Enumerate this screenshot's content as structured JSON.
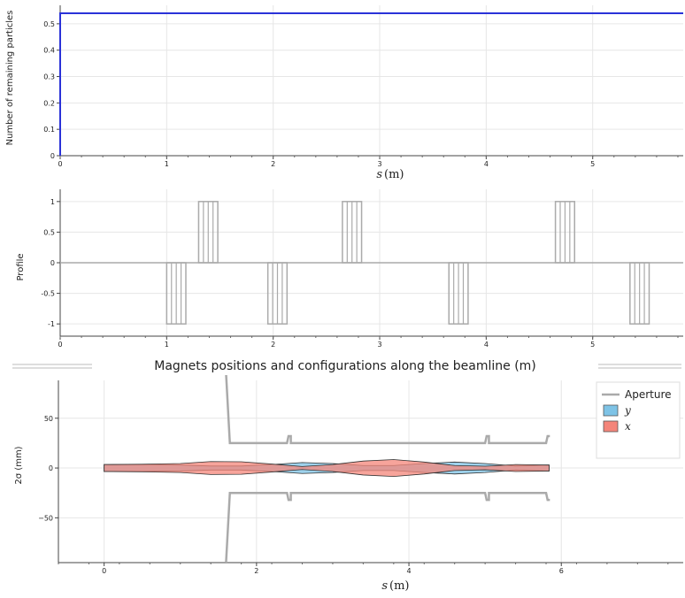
{
  "chart_data": [
    {
      "id": "remaining",
      "type": "line",
      "ylabel": "Number of remaining particles",
      "xlabel": "s",
      "xlabel_unit": "(m)",
      "xlim": [
        0,
        5.85
      ],
      "ylim": [
        0,
        0.57
      ],
      "xticks": [
        0,
        1,
        2,
        3,
        4,
        5
      ],
      "yticks": [
        0,
        0.1,
        0.2,
        0.3,
        0.4,
        0.5
      ],
      "ytick_labels": [
        "0",
        "0.1",
        "0.2",
        "0.3",
        "0.4",
        "0.5"
      ],
      "grid": true,
      "series": [
        {
          "color": "#2a32d8",
          "x": [
            0,
            0,
            5.85
          ],
          "y": [
            0,
            0.54,
            0.54
          ]
        }
      ]
    },
    {
      "id": "magnets",
      "type": "line",
      "ylabel": "Profile",
      "title": "Magnets positions and configurations along the beamline (m)",
      "xlim": [
        0,
        5.85
      ],
      "ylim": [
        -1.2,
        1.2
      ],
      "xticks": [
        0,
        1,
        2,
        3,
        4,
        5
      ],
      "yticks": [
        1,
        0.5,
        0,
        -0.5,
        -1
      ],
      "ytick_labels": [
        "1",
        "0.5",
        "0",
        "-0.5",
        "-1"
      ],
      "grid": true,
      "color": "#aaaaaa",
      "magnets": [
        {
          "start": 1.0,
          "end": 1.18,
          "value": -1
        },
        {
          "start": 1.3,
          "end": 1.48,
          "value": 1
        },
        {
          "start": 1.95,
          "end": 2.13,
          "value": -1
        },
        {
          "start": 2.65,
          "end": 2.83,
          "value": 1
        },
        {
          "start": 3.65,
          "end": 3.83,
          "value": -1
        },
        {
          "start": 4.65,
          "end": 4.83,
          "value": 1
        },
        {
          "start": 5.35,
          "end": 5.53,
          "value": -1
        }
      ]
    },
    {
      "id": "envelope",
      "type": "area",
      "ylabel": "2σ (mm)",
      "xlabel": "s",
      "xlabel_unit": "(m)",
      "xlim": [
        -0.6,
        7.6
      ],
      "ylim": [
        -95,
        88
      ],
      "xticks": [
        0,
        2,
        4,
        6
      ],
      "yticks": [
        50,
        0,
        -50
      ],
      "ytick_labels": [
        "50",
        "0",
        "−50"
      ],
      "grid": true,
      "legend": {
        "placement": "top-right",
        "entries": [
          {
            "label": "Aperture",
            "style": "line",
            "color": "#aaaaaa"
          },
          {
            "label": "y",
            "style": "patch",
            "color": "#7ec3e6",
            "italic": true
          },
          {
            "label": "x",
            "style": "patch",
            "color": "#f4857a",
            "italic": true
          }
        ]
      },
      "aperture": {
        "s": [
          1.6,
          1.65,
          1.65,
          2.4,
          2.42,
          2.45,
          2.45,
          5.0,
          5.02,
          5.05,
          5.05,
          5.8,
          5.82,
          5.85
        ],
        "r": [
          95,
          25,
          25,
          25,
          32,
          32,
          25,
          25,
          32,
          32,
          25,
          25,
          32,
          32
        ]
      },
      "x": {
        "s": [
          0,
          0.5,
          1.0,
          1.4,
          1.8,
          2.2,
          2.6,
          3.0,
          3.4,
          3.8,
          4.2,
          4.6,
          5.0,
          5.4,
          5.84
        ],
        "envelope": [
          3.5,
          3.8,
          4.5,
          6.5,
          6.3,
          4.0,
          1.5,
          3.5,
          7.0,
          8.5,
          6.0,
          2.5,
          1.8,
          3.5,
          3.0
        ]
      },
      "y": {
        "s": [
          0,
          0.5,
          1.0,
          1.4,
          1.8,
          2.2,
          2.6,
          3.0,
          3.4,
          3.8,
          4.2,
          4.6,
          5.0,
          5.4,
          5.84
        ],
        "envelope": [
          3.5,
          3.3,
          3.0,
          2.0,
          2.0,
          3.5,
          5.5,
          4.5,
          2.5,
          2.5,
          4.5,
          6.0,
          4.5,
          2.0,
          3.0
        ]
      }
    }
  ]
}
